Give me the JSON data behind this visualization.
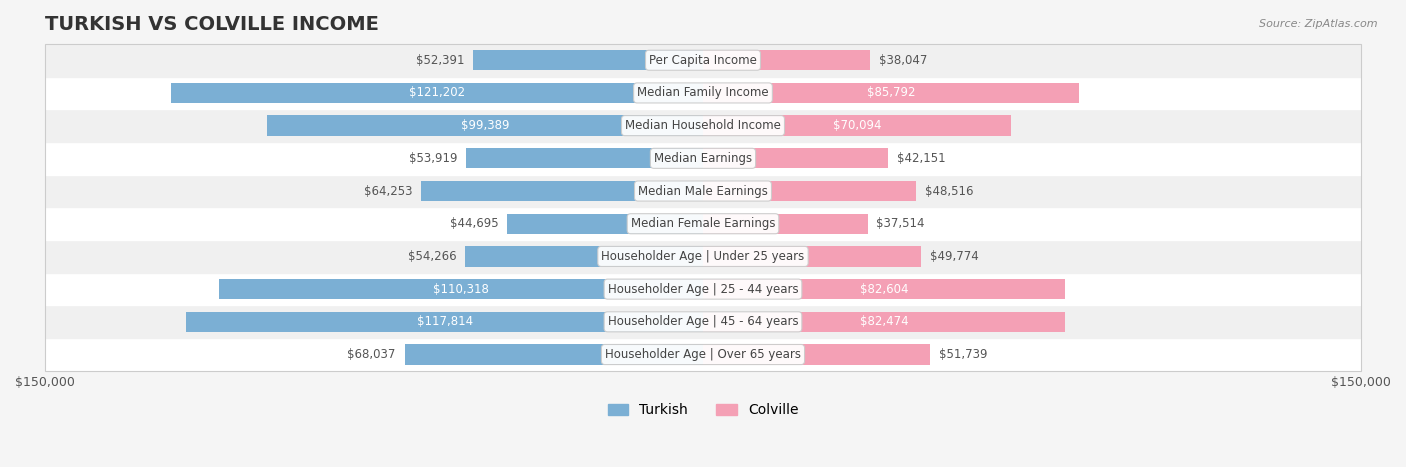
{
  "title": "TURKISH VS COLVILLE INCOME",
  "source": "Source: ZipAtlas.com",
  "categories": [
    "Per Capita Income",
    "Median Family Income",
    "Median Household Income",
    "Median Earnings",
    "Median Male Earnings",
    "Median Female Earnings",
    "Householder Age | Under 25 years",
    "Householder Age | 25 - 44 years",
    "Householder Age | 45 - 64 years",
    "Householder Age | Over 65 years"
  ],
  "turkish_values": [
    52391,
    121202,
    99389,
    53919,
    64253,
    44695,
    54266,
    110318,
    117814,
    68037
  ],
  "colville_values": [
    38047,
    85792,
    70094,
    42151,
    48516,
    37514,
    49774,
    82604,
    82474,
    51739
  ],
  "turkish_labels": [
    "$52,391",
    "$121,202",
    "$99,389",
    "$53,919",
    "$64,253",
    "$44,695",
    "$54,266",
    "$110,318",
    "$117,814",
    "$68,037"
  ],
  "colville_labels": [
    "$38,047",
    "$85,792",
    "$70,094",
    "$42,151",
    "$48,516",
    "$37,514",
    "$49,774",
    "$82,604",
    "$82,474",
    "$51,739"
  ],
  "max_value": 150000,
  "turkish_color": "#7bafd4",
  "turkish_color_strong": "#5b9bbf",
  "colville_color": "#f4a0b5",
  "colville_color_strong": "#e8708a",
  "turkish_label_color_inside": "#ffffff",
  "colville_label_color_inside": "#ffffff",
  "turkish_label_color_outside": "#555555",
  "colville_label_color_outside": "#555555",
  "bg_color": "#f5f5f5",
  "row_bg_color": "#ffffff",
  "row_alt_bg_color": "#f0f0f0",
  "legend_turkish": "Turkish",
  "legend_colville": "Colville",
  "xlabel_left": "$150,000",
  "xlabel_right": "$150,000",
  "turkish_inside_threshold": 80000,
  "colville_inside_threshold": 60000,
  "title_fontsize": 14,
  "label_fontsize": 8.5,
  "category_fontsize": 8.5,
  "legend_fontsize": 10
}
